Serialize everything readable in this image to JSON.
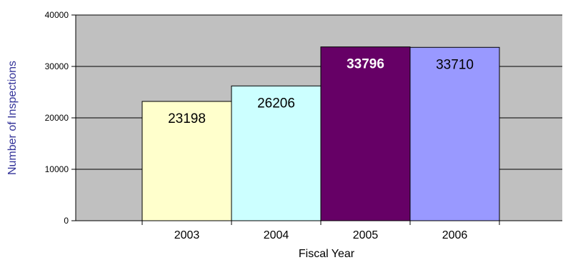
{
  "chart_data": {
    "type": "bar",
    "categories": [
      "2003",
      "2004",
      "2005",
      "2006"
    ],
    "values": [
      23198,
      26206,
      33796,
      33710
    ],
    "data_labels": [
      "23198",
      "26206",
      "33796",
      "33710"
    ],
    "bar_colors": [
      "#ffffcc",
      "#ccffff",
      "#660066",
      "#9999ff"
    ],
    "label_colors": [
      "#000000",
      "#000000",
      "#ffffff",
      "#000000"
    ],
    "label_bold": [
      false,
      false,
      true,
      false
    ],
    "xlabel": "Fiscal Year",
    "ylabel": "Number of Inspections",
    "ylim": [
      0,
      40000
    ],
    "yticks": [
      0,
      10000,
      20000,
      30000,
      40000
    ],
    "ytick_labels": [
      "0",
      "10000",
      "20000",
      "30000",
      "40000"
    ],
    "grid": true,
    "plot_background": "#c0c0c0",
    "xlabel_color": "#000000",
    "ylabel_color": "#333399"
  }
}
